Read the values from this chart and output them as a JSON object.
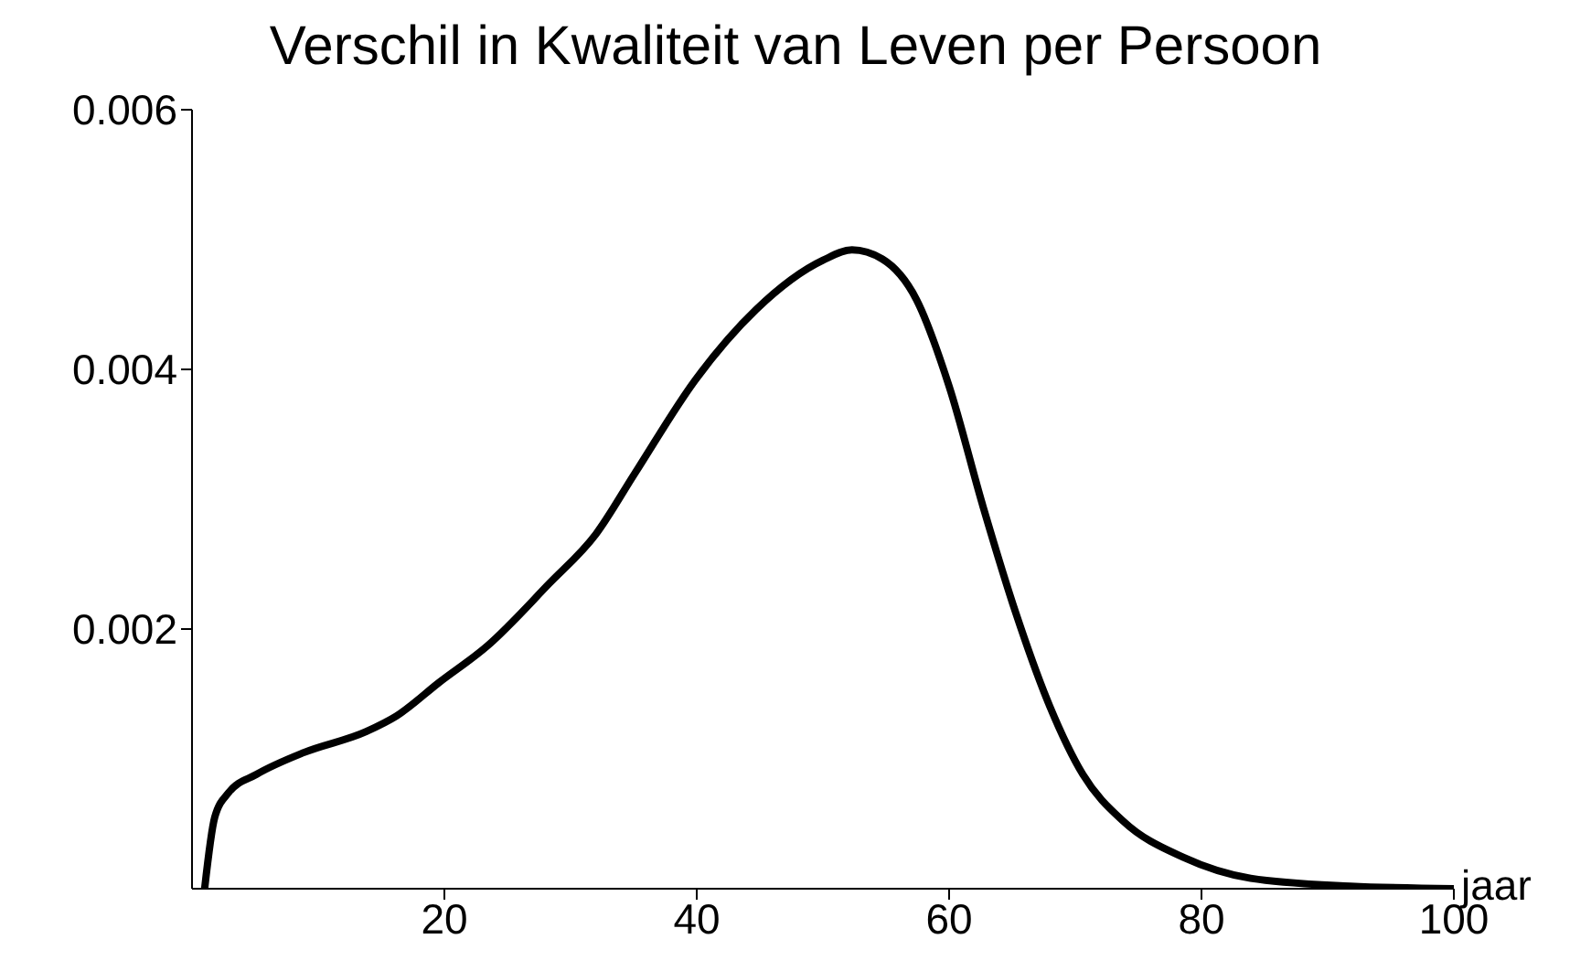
{
  "chart_data": {
    "type": "line",
    "title": "Verschil in Kwaliteit van Leven per Persoon",
    "xlabel": "jaar",
    "xlim": [
      0,
      100
    ],
    "xticks": [
      20,
      40,
      60,
      80,
      100
    ],
    "ylim": [
      0,
      0.006
    ],
    "yticks": [
      0.002,
      0.004,
      0.006
    ],
    "grid": false,
    "legend": false,
    "series": [
      {
        "color": "#000000",
        "x": [
          1,
          1.8,
          2.9,
          5.1,
          8.9,
          13.8,
          16.2,
          19.6,
          23.4,
          28.3,
          32,
          35.1,
          39.9,
          44.7,
          50,
          52.3,
          54.7,
          57.4,
          60,
          62.7,
          65.3,
          68,
          70.6,
          73.8,
          78.6,
          83.9,
          91.8,
          100
        ],
        "values": [
          0,
          0.00055,
          0.00074,
          0.00088,
          0.00105,
          0.00121,
          0.00133,
          0.00159,
          0.00187,
          0.00235,
          0.00273,
          0.0032,
          0.00392,
          0.00446,
          0.00484,
          0.00492,
          0.00485,
          0.00454,
          0.00387,
          0.00294,
          0.00212,
          0.0014,
          0.00088,
          0.00052,
          0.00024,
          8e-05,
          2e-05,
          0
        ]
      }
    ]
  }
}
